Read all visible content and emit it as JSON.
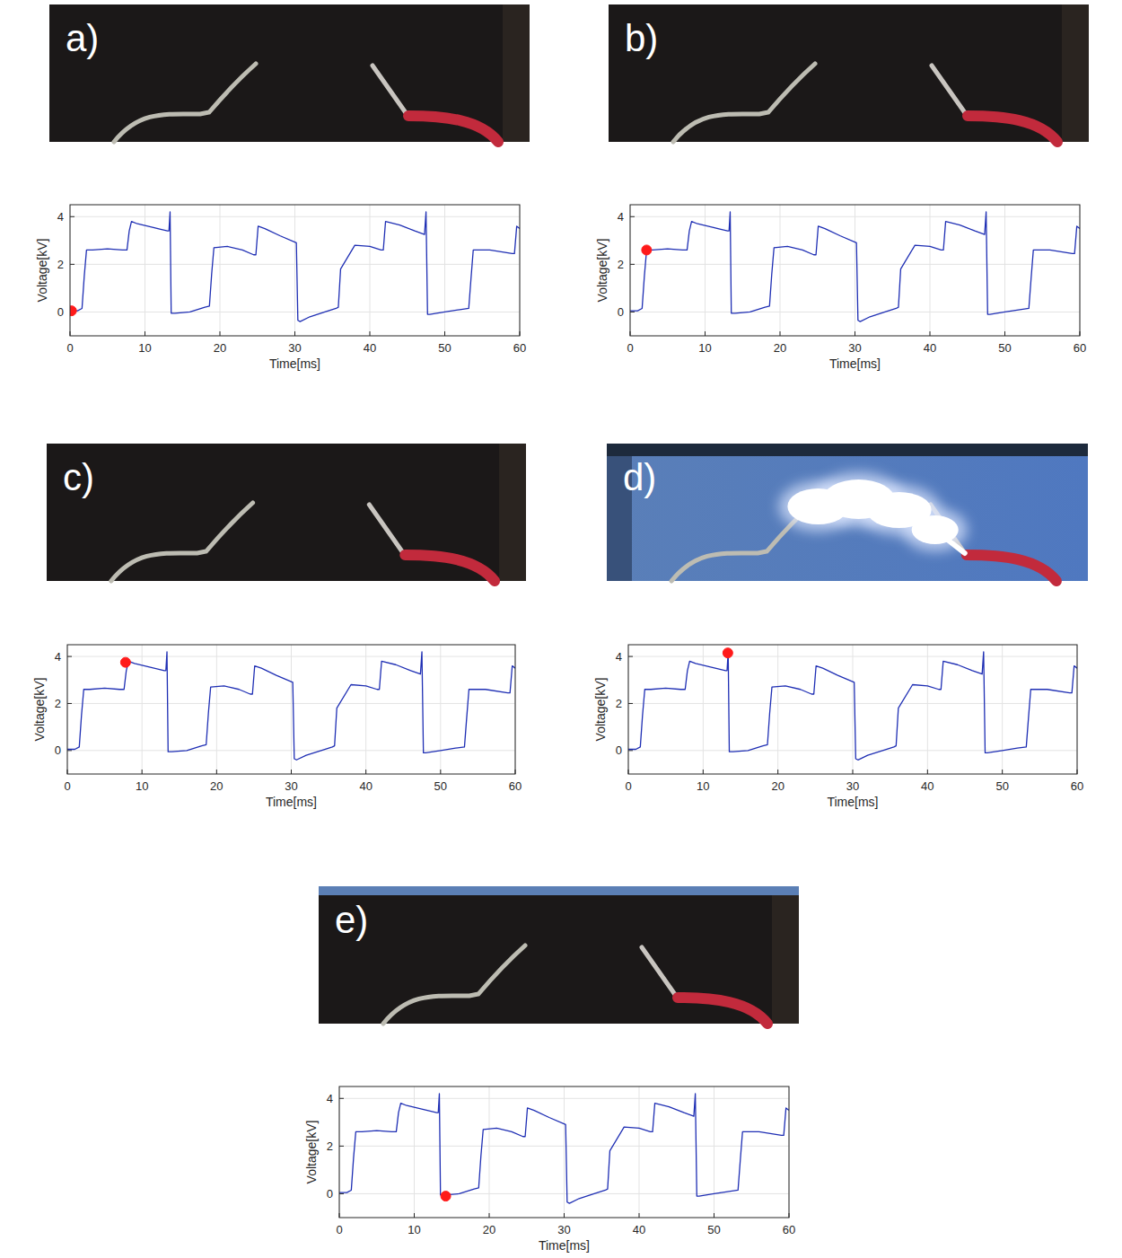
{
  "chart_data": [
    {
      "type": "line",
      "title": "a)",
      "x_label": "Time[ms]",
      "y_label": "Voltage[kV]",
      "xlim": [
        0,
        60
      ],
      "ylim": [
        -1,
        4.5
      ],
      "xticks": [
        0,
        10,
        20,
        30,
        40,
        50,
        60
      ],
      "yticks": [
        0,
        2,
        4
      ],
      "grid": true,
      "series": [
        {
          "color": "#1f2fb4",
          "x": [
            0,
            1,
            1.6,
            1.9,
            2.2,
            3,
            5,
            7,
            7.6,
            7.9,
            8.2,
            9,
            11,
            13,
            13.2,
            13.35,
            13.5,
            14,
            16,
            18,
            18.6,
            18.9,
            19.2,
            21,
            23,
            24.5,
            24.8,
            25.1,
            26,
            28,
            30.2,
            30.4,
            30.7,
            32,
            34,
            35.5,
            35.8,
            36.1,
            38,
            40,
            41.5,
            41.8,
            42.1,
            44,
            46,
            47.3,
            47.5,
            47.7,
            48,
            50,
            52,
            53.2,
            53.5,
            53.8,
            56,
            59,
            59.3,
            59.6,
            60
          ],
          "values": [
            0.05,
            0.05,
            0.15,
            1.5,
            2.6,
            2.6,
            2.65,
            2.6,
            2.6,
            3.4,
            3.8,
            3.7,
            3.55,
            3.4,
            3.4,
            4.2,
            -0.05,
            -0.05,
            0.0,
            0.2,
            0.25,
            1.6,
            2.7,
            2.75,
            2.6,
            2.4,
            2.4,
            3.6,
            3.5,
            3.2,
            2.9,
            -0.35,
            -0.4,
            -0.2,
            0.0,
            0.15,
            0.2,
            1.8,
            2.8,
            2.75,
            2.6,
            2.6,
            3.8,
            3.65,
            3.4,
            3.25,
            4.2,
            -0.1,
            -0.1,
            0.0,
            0.1,
            0.15,
            1.4,
            2.6,
            2.6,
            2.45,
            2.45,
            3.6,
            3.5
          ]
        },
        {
          "type": "scatter",
          "marker": "o",
          "color": "#ff1a1a",
          "x": [
            0.2
          ],
          "values": [
            0.05
          ]
        }
      ]
    },
    {
      "type": "line",
      "title": "b)",
      "x_label": "Time[ms]",
      "y_label": "Voltage[kV]",
      "xlim": [
        0,
        60
      ],
      "ylim": [
        -1,
        4.5
      ],
      "xticks": [
        0,
        10,
        20,
        30,
        40,
        50,
        60
      ],
      "yticks": [
        0,
        2,
        4
      ],
      "grid": true,
      "series": [
        {
          "color": "#1f2fb4",
          "x": [
            0,
            1,
            1.6,
            1.9,
            2.2,
            3,
            5,
            7,
            7.6,
            7.9,
            8.2,
            9,
            11,
            13,
            13.2,
            13.35,
            13.5,
            14,
            16,
            18,
            18.6,
            18.9,
            19.2,
            21,
            23,
            24.5,
            24.8,
            25.1,
            26,
            28,
            30.2,
            30.4,
            30.7,
            32,
            34,
            35.5,
            35.8,
            36.1,
            38,
            40,
            41.5,
            41.8,
            42.1,
            44,
            46,
            47.3,
            47.5,
            47.7,
            48,
            50,
            52,
            53.2,
            53.5,
            53.8,
            56,
            59,
            59.3,
            59.6,
            60
          ],
          "values": [
            0.05,
            0.05,
            0.15,
            1.5,
            2.6,
            2.6,
            2.65,
            2.6,
            2.6,
            3.4,
            3.8,
            3.7,
            3.55,
            3.4,
            3.4,
            4.2,
            -0.05,
            -0.05,
            0.0,
            0.2,
            0.25,
            1.6,
            2.7,
            2.75,
            2.6,
            2.4,
            2.4,
            3.6,
            3.5,
            3.2,
            2.9,
            -0.35,
            -0.4,
            -0.2,
            0.0,
            0.15,
            0.2,
            1.8,
            2.8,
            2.75,
            2.6,
            2.6,
            3.8,
            3.65,
            3.4,
            3.25,
            4.2,
            -0.1,
            -0.1,
            0.0,
            0.1,
            0.15,
            1.4,
            2.6,
            2.6,
            2.45,
            2.45,
            3.6,
            3.5
          ]
        },
        {
          "type": "scatter",
          "marker": "o",
          "color": "#ff1a1a",
          "x": [
            2.2
          ],
          "values": [
            2.6
          ]
        }
      ]
    },
    {
      "type": "line",
      "title": "c)",
      "x_label": "Time[ms]",
      "y_label": "Voltage[kV]",
      "xlim": [
        0,
        60
      ],
      "ylim": [
        -1,
        4.5
      ],
      "xticks": [
        0,
        10,
        20,
        30,
        40,
        50,
        60
      ],
      "yticks": [
        0,
        2,
        4
      ],
      "grid": true,
      "series": [
        {
          "color": "#1f2fb4",
          "x": [
            0,
            1,
            1.6,
            1.9,
            2.2,
            3,
            5,
            7,
            7.6,
            7.9,
            8.2,
            9,
            11,
            13,
            13.2,
            13.35,
            13.5,
            14,
            16,
            18,
            18.6,
            18.9,
            19.2,
            21,
            23,
            24.5,
            24.8,
            25.1,
            26,
            28,
            30.2,
            30.4,
            30.7,
            32,
            34,
            35.5,
            35.8,
            36.1,
            38,
            40,
            41.5,
            41.8,
            42.1,
            44,
            46,
            47.3,
            47.5,
            47.7,
            48,
            50,
            52,
            53.2,
            53.5,
            53.8,
            56,
            59,
            59.3,
            59.6,
            60
          ],
          "values": [
            0.05,
            0.05,
            0.15,
            1.5,
            2.6,
            2.6,
            2.65,
            2.6,
            2.6,
            3.4,
            3.8,
            3.7,
            3.55,
            3.4,
            3.4,
            4.2,
            -0.05,
            -0.05,
            0.0,
            0.2,
            0.25,
            1.6,
            2.7,
            2.75,
            2.6,
            2.4,
            2.4,
            3.6,
            3.5,
            3.2,
            2.9,
            -0.35,
            -0.4,
            -0.2,
            0.0,
            0.15,
            0.2,
            1.8,
            2.8,
            2.75,
            2.6,
            2.6,
            3.8,
            3.65,
            3.4,
            3.25,
            4.2,
            -0.1,
            -0.1,
            0.0,
            0.1,
            0.15,
            1.4,
            2.6,
            2.6,
            2.45,
            2.45,
            3.6,
            3.5
          ]
        },
        {
          "type": "scatter",
          "marker": "o",
          "color": "#ff1a1a",
          "x": [
            7.8
          ],
          "values": [
            3.75
          ]
        }
      ]
    },
    {
      "type": "line",
      "title": "d)",
      "x_label": "Time[ms]",
      "y_label": "Voltage[kV]",
      "xlim": [
        0,
        60
      ],
      "ylim": [
        -1,
        4.5
      ],
      "xticks": [
        0,
        10,
        20,
        30,
        40,
        50,
        60
      ],
      "yticks": [
        0,
        2,
        4
      ],
      "grid": true,
      "series": [
        {
          "color": "#1f2fb4",
          "x": [
            0,
            1,
            1.6,
            1.9,
            2.2,
            3,
            5,
            7,
            7.6,
            7.9,
            8.2,
            9,
            11,
            13,
            13.2,
            13.35,
            13.5,
            14,
            16,
            18,
            18.6,
            18.9,
            19.2,
            21,
            23,
            24.5,
            24.8,
            25.1,
            26,
            28,
            30.2,
            30.4,
            30.7,
            32,
            34,
            35.5,
            35.8,
            36.1,
            38,
            40,
            41.5,
            41.8,
            42.1,
            44,
            46,
            47.3,
            47.5,
            47.7,
            48,
            50,
            52,
            53.2,
            53.5,
            53.8,
            56,
            59,
            59.3,
            59.6,
            60
          ],
          "values": [
            0.05,
            0.05,
            0.15,
            1.5,
            2.6,
            2.6,
            2.65,
            2.6,
            2.6,
            3.4,
            3.8,
            3.7,
            3.55,
            3.4,
            3.4,
            4.2,
            -0.05,
            -0.05,
            0.0,
            0.2,
            0.25,
            1.6,
            2.7,
            2.75,
            2.6,
            2.4,
            2.4,
            3.6,
            3.5,
            3.2,
            2.9,
            -0.35,
            -0.4,
            -0.2,
            0.0,
            0.15,
            0.2,
            1.8,
            2.8,
            2.75,
            2.6,
            2.6,
            3.8,
            3.65,
            3.4,
            3.25,
            4.2,
            -0.1,
            -0.1,
            0.0,
            0.1,
            0.15,
            1.4,
            2.6,
            2.6,
            2.45,
            2.45,
            3.6,
            3.5
          ]
        },
        {
          "type": "scatter",
          "marker": "o",
          "color": "#ff1a1a",
          "x": [
            13.3
          ],
          "values": [
            4.15
          ]
        }
      ]
    },
    {
      "type": "line",
      "title": "e)",
      "x_label": "Time[ms]",
      "y_label": "Voltage[kV]",
      "xlim": [
        0,
        60
      ],
      "ylim": [
        -1,
        4.5
      ],
      "xticks": [
        0,
        10,
        20,
        30,
        40,
        50,
        60
      ],
      "yticks": [
        0,
        2,
        4
      ],
      "grid": true,
      "series": [
        {
          "color": "#1f2fb4",
          "x": [
            0,
            1,
            1.6,
            1.9,
            2.2,
            3,
            5,
            7,
            7.6,
            7.9,
            8.2,
            9,
            11,
            13,
            13.2,
            13.35,
            13.5,
            14,
            16,
            18,
            18.6,
            18.9,
            19.2,
            21,
            23,
            24.5,
            24.8,
            25.1,
            26,
            28,
            30.2,
            30.4,
            30.7,
            32,
            34,
            35.5,
            35.8,
            36.1,
            38,
            40,
            41.5,
            41.8,
            42.1,
            44,
            46,
            47.3,
            47.5,
            47.7,
            48,
            50,
            52,
            53.2,
            53.5,
            53.8,
            56,
            59,
            59.3,
            59.6,
            60
          ],
          "values": [
            0.05,
            0.05,
            0.15,
            1.5,
            2.6,
            2.6,
            2.65,
            2.6,
            2.6,
            3.4,
            3.8,
            3.7,
            3.55,
            3.4,
            3.4,
            4.2,
            -0.05,
            -0.05,
            0.0,
            0.2,
            0.25,
            1.6,
            2.7,
            2.75,
            2.6,
            2.4,
            2.4,
            3.6,
            3.5,
            3.2,
            2.9,
            -0.35,
            -0.4,
            -0.2,
            0.0,
            0.15,
            0.2,
            1.8,
            2.8,
            2.75,
            2.6,
            2.6,
            3.8,
            3.65,
            3.4,
            3.25,
            4.2,
            -0.1,
            -0.1,
            0.0,
            0.1,
            0.15,
            1.4,
            2.6,
            2.6,
            2.45,
            2.45,
            3.6,
            3.5
          ]
        },
        {
          "type": "scatter",
          "marker": "o",
          "color": "#ff1a1a",
          "x": [
            14.2
          ],
          "values": [
            -0.1
          ]
        }
      ]
    }
  ]
}
